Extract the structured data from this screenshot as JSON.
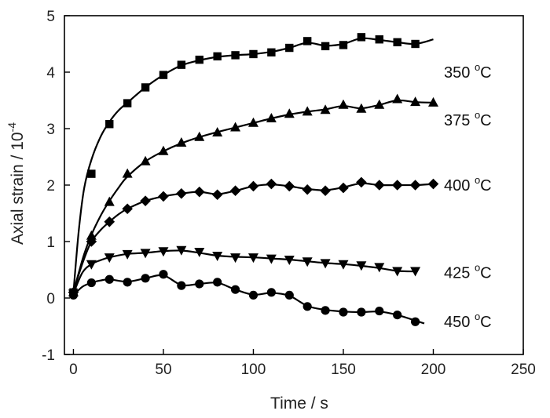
{
  "chart_data": {
    "type": "scatter",
    "xlabel": "Time / s",
    "ylabel": "Axial strain / 10",
    "ylabel_exponent": "-4",
    "xlim": [
      -5,
      250
    ],
    "ylim": [
      -1,
      5
    ],
    "x_ticks": [
      0,
      50,
      100,
      150,
      200,
      250
    ],
    "y_ticks": [
      -1,
      0,
      1,
      2,
      3,
      4,
      5
    ],
    "grid": false,
    "legend": "inline-right",
    "series": [
      {
        "name": "350 °C",
        "label_main": "350 ",
        "label_sup": "o",
        "label_unit": "C",
        "marker": "square",
        "x": [
          0,
          10,
          20,
          30,
          40,
          50,
          60,
          70,
          80,
          90,
          100,
          110,
          120,
          130,
          140,
          150,
          160,
          170,
          180,
          190
        ],
        "y": [
          0.1,
          2.2,
          3.08,
          3.45,
          3.73,
          3.95,
          4.13,
          4.22,
          4.28,
          4.3,
          4.32,
          4.35,
          4.43,
          4.55,
          4.46,
          4.48,
          4.62,
          4.58,
          4.53,
          4.5
        ],
        "curve_x": [
          0,
          3,
          6,
          10,
          15,
          20,
          25,
          30,
          40,
          50,
          60,
          70,
          80,
          90,
          100,
          110,
          120,
          130,
          140,
          150,
          160,
          170,
          180,
          190,
          200
        ],
        "curve_y": [
          0.1,
          1.2,
          1.95,
          2.45,
          2.85,
          3.12,
          3.32,
          3.46,
          3.73,
          3.95,
          4.12,
          4.21,
          4.27,
          4.3,
          4.32,
          4.36,
          4.43,
          4.52,
          4.47,
          4.5,
          4.6,
          4.57,
          4.53,
          4.5,
          4.58
        ]
      },
      {
        "name": "375 °C",
        "label_main": "375 ",
        "label_sup": "o",
        "label_unit": "C",
        "marker": "triangle-up",
        "x": [
          0,
          10,
          20,
          30,
          40,
          50,
          60,
          70,
          80,
          90,
          100,
          110,
          120,
          130,
          140,
          150,
          160,
          170,
          180,
          190,
          200
        ],
        "y": [
          0.1,
          1.1,
          1.7,
          2.2,
          2.42,
          2.6,
          2.75,
          2.85,
          2.93,
          3.02,
          3.1,
          3.18,
          3.26,
          3.3,
          3.33,
          3.42,
          3.35,
          3.42,
          3.52,
          3.47,
          3.46
        ],
        "curve_x": [
          0,
          3,
          6,
          10,
          15,
          20,
          25,
          30,
          40,
          50,
          60,
          70,
          80,
          90,
          100,
          110,
          120,
          130,
          140,
          150,
          160,
          170,
          180,
          190,
          200
        ],
        "curve_y": [
          0.1,
          0.45,
          0.78,
          1.12,
          1.45,
          1.72,
          1.95,
          2.15,
          2.42,
          2.6,
          2.74,
          2.85,
          2.94,
          3.02,
          3.1,
          3.18,
          3.25,
          3.3,
          3.34,
          3.4,
          3.36,
          3.42,
          3.5,
          3.47,
          3.46
        ]
      },
      {
        "name": "400 °C",
        "label_main": "400 ",
        "label_sup": "o",
        "label_unit": "C",
        "marker": "diamond",
        "x": [
          0,
          10,
          20,
          30,
          40,
          50,
          60,
          70,
          80,
          90,
          100,
          110,
          120,
          130,
          140,
          150,
          160,
          170,
          180,
          190,
          200
        ],
        "y": [
          0.1,
          1.0,
          1.35,
          1.58,
          1.72,
          1.8,
          1.85,
          1.88,
          1.83,
          1.9,
          1.98,
          2.02,
          1.98,
          1.92,
          1.9,
          1.95,
          2.05,
          2.0,
          2.0,
          2.0,
          2.02
        ],
        "curve_x": [
          0,
          3,
          6,
          10,
          15,
          20,
          25,
          30,
          40,
          50,
          60,
          70,
          80,
          90,
          100,
          110,
          120,
          130,
          140,
          150,
          160,
          170,
          180,
          190,
          200
        ],
        "curve_y": [
          0.1,
          0.42,
          0.7,
          1.0,
          1.2,
          1.35,
          1.48,
          1.58,
          1.72,
          1.8,
          1.85,
          1.88,
          1.84,
          1.9,
          1.98,
          2.01,
          1.98,
          1.93,
          1.91,
          1.96,
          2.03,
          2.0,
          2.0,
          2.0,
          2.02
        ]
      },
      {
        "name": "425 °C",
        "label_main": "425 ",
        "label_sup": "o",
        "label_unit": "C",
        "marker": "triangle-down",
        "x": [
          0,
          10,
          20,
          30,
          40,
          50,
          60,
          70,
          80,
          90,
          100,
          110,
          120,
          130,
          140,
          150,
          160,
          170,
          180,
          190
        ],
        "y": [
          0.08,
          0.6,
          0.72,
          0.78,
          0.8,
          0.83,
          0.85,
          0.82,
          0.75,
          0.72,
          0.72,
          0.7,
          0.68,
          0.65,
          0.62,
          0.6,
          0.58,
          0.55,
          0.48,
          0.48
        ],
        "curve_x": [
          0,
          5,
          10,
          15,
          20,
          30,
          40,
          50,
          60,
          70,
          80,
          90,
          100,
          110,
          120,
          130,
          140,
          150,
          160,
          170,
          180,
          190
        ],
        "curve_y": [
          0.08,
          0.45,
          0.6,
          0.67,
          0.72,
          0.78,
          0.8,
          0.83,
          0.84,
          0.8,
          0.75,
          0.73,
          0.72,
          0.7,
          0.68,
          0.65,
          0.62,
          0.6,
          0.57,
          0.53,
          0.48,
          0.47
        ]
      },
      {
        "name": "450 °C",
        "label_main": "450 ",
        "label_sup": "o",
        "label_unit": "C",
        "marker": "circle",
        "x": [
          0,
          10,
          20,
          30,
          40,
          50,
          60,
          70,
          80,
          90,
          100,
          110,
          120,
          130,
          140,
          150,
          160,
          170,
          180,
          190
        ],
        "y": [
          0.05,
          0.27,
          0.33,
          0.28,
          0.35,
          0.42,
          0.22,
          0.25,
          0.28,
          0.15,
          0.05,
          0.1,
          0.05,
          -0.15,
          -0.22,
          -0.25,
          -0.25,
          -0.23,
          -0.3,
          -0.42
        ],
        "curve_x": [
          0,
          5,
          10,
          15,
          20,
          30,
          40,
          50,
          60,
          70,
          80,
          90,
          100,
          110,
          120,
          130,
          140,
          150,
          160,
          170,
          180,
          190,
          195
        ],
        "curve_y": [
          0.05,
          0.2,
          0.27,
          0.31,
          0.33,
          0.29,
          0.35,
          0.4,
          0.23,
          0.25,
          0.27,
          0.15,
          0.06,
          0.09,
          0.04,
          -0.14,
          -0.21,
          -0.24,
          -0.25,
          -0.24,
          -0.3,
          -0.4,
          -0.45
        ]
      }
    ]
  }
}
